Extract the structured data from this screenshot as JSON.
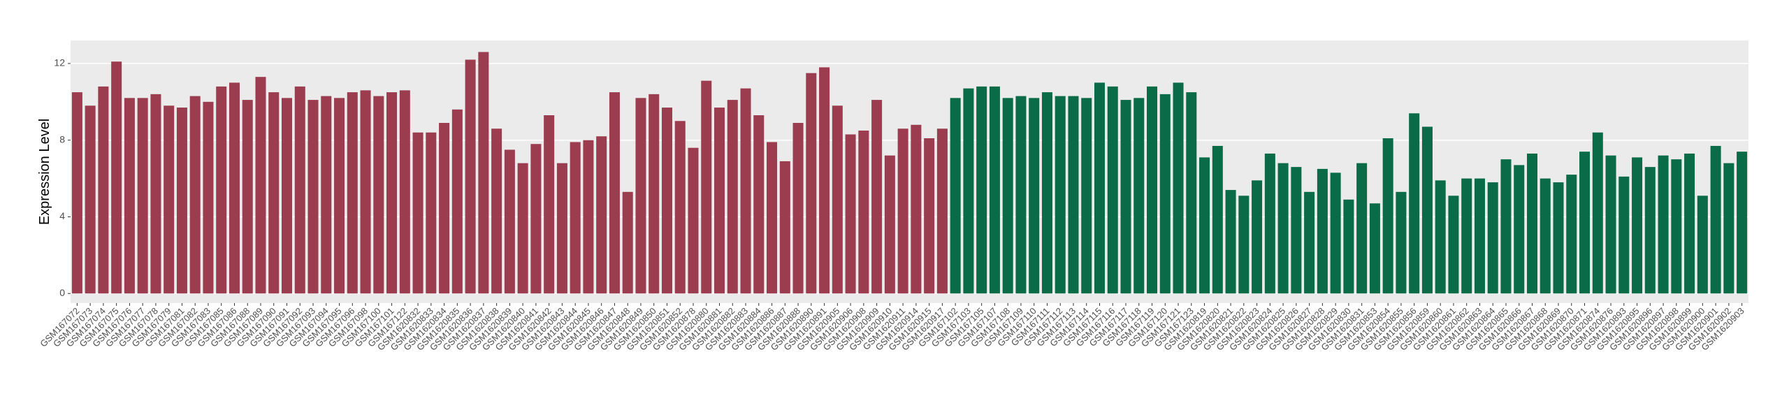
{
  "chart_data": {
    "type": "bar",
    "y_label": "Expression Level",
    "ylim": [
      -0.5,
      13.2
    ],
    "yticks": [
      0,
      4,
      8,
      12
    ],
    "grid": true,
    "categories": [
      "GSM167072",
      "GSM167073",
      "GSM167074",
      "GSM167075",
      "GSM167076",
      "GSM167077",
      "GSM167078",
      "GSM167079",
      "GSM167081",
      "GSM167082",
      "GSM167083",
      "GSM167085",
      "GSM167086",
      "GSM167088",
      "GSM167089",
      "GSM167090",
      "GSM167091",
      "GSM167092",
      "GSM167093",
      "GSM167094",
      "GSM167095",
      "GSM167096",
      "GSM167098",
      "GSM167100",
      "GSM167101",
      "GSM167122",
      "GSM1620832",
      "GSM1620833",
      "GSM1620834",
      "GSM1620835",
      "GSM1620836",
      "GSM1620837",
      "GSM1620838",
      "GSM1620839",
      "GSM1620840",
      "GSM1620841",
      "GSM1620842",
      "GSM1620843",
      "GSM1620844",
      "GSM1620845",
      "GSM1620846",
      "GSM1620847",
      "GSM1620848",
      "GSM1620849",
      "GSM1620850",
      "GSM1620851",
      "GSM1620852",
      "GSM1620878",
      "GSM1620880",
      "GSM1620881",
      "GSM1620882",
      "GSM1620883",
      "GSM1620884",
      "GSM1620886",
      "GSM1620887",
      "GSM1620888",
      "GSM1620890",
      "GSM1620891",
      "GSM1620905",
      "GSM1620906",
      "GSM1620908",
      "GSM1620909",
      "GSM1620910",
      "GSM1620911",
      "GSM1620914",
      "GSM1620915",
      "GSM1620917",
      "GSM167102",
      "GSM167103",
      "GSM167105",
      "GSM167107",
      "GSM167108",
      "GSM167109",
      "GSM167110",
      "GSM167111",
      "GSM167112",
      "GSM167113",
      "GSM167114",
      "GSM167115",
      "GSM167116",
      "GSM167117",
      "GSM167118",
      "GSM167119",
      "GSM167120",
      "GSM167121",
      "GSM167123",
      "GSM1620819",
      "GSM1620820",
      "GSM1620821",
      "GSM1620822",
      "GSM1620823",
      "GSM1620824",
      "GSM1620825",
      "GSM1620826",
      "GSM1620827",
      "GSM1620828",
      "GSM1620829",
      "GSM1620830",
      "GSM1620831",
      "GSM1620853",
      "GSM1620854",
      "GSM1620855",
      "GSM1620856",
      "GSM1620859",
      "GSM1620860",
      "GSM1620861",
      "GSM1620862",
      "GSM1620863",
      "GSM1620864",
      "GSM1620865",
      "GSM1620866",
      "GSM1620867",
      "GSM1620868",
      "GSM1620869",
      "GSM1620870",
      "GSM1620871",
      "GSM1620874",
      "GSM1620876",
      "GSM1620893",
      "GSM1620895",
      "GSM1620896",
      "GSM1620897",
      "GSM1620898",
      "GSM1620899",
      "GSM1620900",
      "GSM1620901",
      "GSM1620902",
      "GSM1620903"
    ],
    "series": [
      {
        "color": "#9b3d4f",
        "values": [
          10.5,
          9.8,
          10.8,
          12.1,
          10.2,
          10.2,
          10.4,
          9.8,
          9.7,
          10.3,
          10.0,
          10.8,
          11.0,
          10.1,
          11.3,
          10.5,
          10.2,
          10.8,
          10.1,
          10.3,
          10.2,
          10.5,
          10.6,
          10.3,
          10.5,
          10.6,
          8.4,
          8.4,
          8.9,
          9.6,
          12.2,
          12.6,
          8.6,
          7.5,
          6.8,
          7.8,
          9.3,
          6.8,
          7.9,
          8.0,
          8.2,
          10.5,
          5.3,
          10.2,
          10.4,
          9.7,
          9.0,
          7.6,
          11.1,
          9.7,
          10.1,
          10.7,
          9.3,
          7.9,
          6.9,
          8.9,
          11.5,
          11.8,
          9.8,
          8.3,
          8.5,
          10.1,
          7.2,
          8.6,
          8.8,
          8.1,
          8.6,
          null,
          null,
          null,
          null,
          null,
          null,
          null,
          null,
          null,
          null,
          null,
          null,
          null,
          null,
          null,
          null,
          null,
          null,
          null,
          null,
          null,
          null,
          null,
          null,
          null,
          null,
          null,
          null,
          null,
          null,
          null,
          null,
          null,
          null,
          null,
          null,
          null,
          null,
          null,
          null,
          null,
          null,
          null,
          null,
          null,
          null,
          null,
          null,
          null,
          null,
          null,
          null,
          null,
          null,
          null,
          null,
          null,
          null,
          null,
          null,
          null
        ]
      },
      {
        "color": "#0a6b48",
        "values": [
          null,
          null,
          null,
          null,
          null,
          null,
          null,
          null,
          null,
          null,
          null,
          null,
          null,
          null,
          null,
          null,
          null,
          null,
          null,
          null,
          null,
          null,
          null,
          null,
          null,
          null,
          null,
          null,
          null,
          null,
          null,
          null,
          null,
          null,
          null,
          null,
          null,
          null,
          null,
          null,
          null,
          null,
          null,
          null,
          null,
          null,
          null,
          null,
          null,
          null,
          null,
          null,
          null,
          null,
          null,
          null,
          null,
          null,
          null,
          null,
          null,
          null,
          null,
          null,
          null,
          null,
          null,
          10.2,
          10.7,
          10.8,
          10.8,
          10.2,
          10.3,
          10.2,
          10.5,
          10.3,
          10.3,
          10.2,
          11.0,
          10.8,
          10.1,
          10.2,
          10.8,
          10.4,
          11.0,
          10.5,
          7.1,
          7.7,
          5.4,
          5.1,
          5.9,
          7.3,
          6.8,
          6.6,
          5.3,
          6.5,
          6.3,
          4.9,
          6.8,
          4.7,
          8.1,
          5.3,
          9.4,
          8.7,
          5.9,
          5.1,
          6.0,
          6.0,
          5.8,
          7.0,
          6.7,
          7.3,
          6.0,
          5.8,
          6.2,
          7.4,
          8.4,
          7.2,
          6.1,
          7.1,
          6.6,
          7.2,
          7.0,
          7.3,
          5.1,
          7.7,
          6.8,
          7.4
        ]
      }
    ]
  }
}
